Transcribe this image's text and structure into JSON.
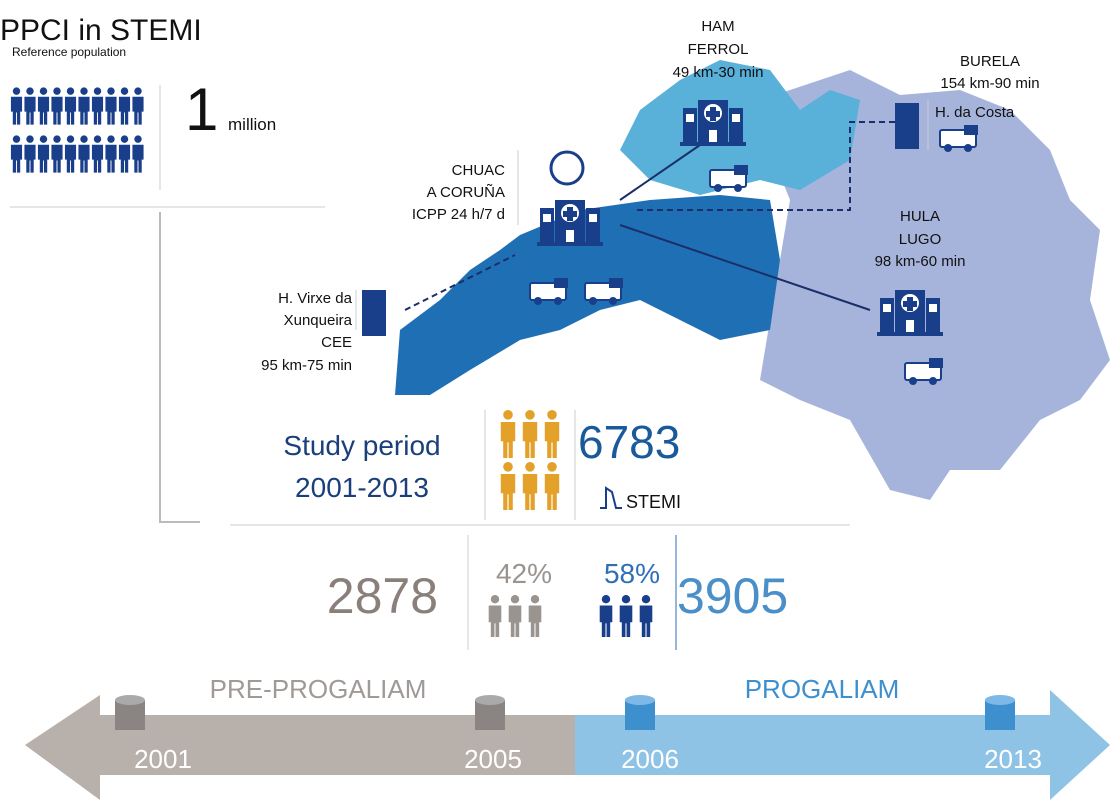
{
  "header": {
    "title": "PPCI in STEMI",
    "subtitle": "Reference population"
  },
  "population": {
    "number": "1",
    "unit": "million"
  },
  "hospitals": {
    "chuac": {
      "lines": [
        "CHUAC",
        "A CORUÑA",
        "ICPP 24 h/7 d"
      ]
    },
    "ham": {
      "lines": [
        "HAM",
        "FERROL",
        "49 km-30 min"
      ]
    },
    "burela": {
      "lines": [
        "BURELA",
        "154 km-90 min"
      ],
      "note": "H. da Costa"
    },
    "hula": {
      "lines": [
        "HULA",
        "LUGO",
        "98 km-60 min"
      ]
    },
    "cee": {
      "lines": [
        "H. Virxe da",
        "Xunqueira",
        "CEE",
        "95 km-75 min"
      ]
    }
  },
  "study": {
    "label": "Study period",
    "years": "2001-2013",
    "total": "6783",
    "total_label": "STEMI"
  },
  "split": {
    "pre_count": "2878",
    "pre_pct": "42%",
    "post_pct": "58%",
    "post_count": "3905"
  },
  "timeline": {
    "pre_label": "PRE-PROGALIAM",
    "post_label": "PROGALIAM",
    "years": [
      "2001",
      "2005",
      "2006",
      "2013"
    ]
  }
}
